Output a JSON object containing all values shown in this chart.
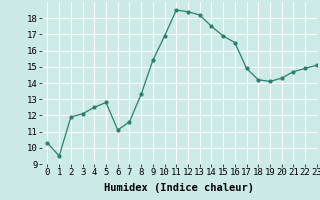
{
  "x": [
    0,
    1,
    2,
    3,
    4,
    5,
    6,
    7,
    8,
    9,
    10,
    11,
    12,
    13,
    14,
    15,
    16,
    17,
    18,
    19,
    20,
    21,
    22,
    23
  ],
  "y": [
    10.3,
    9.5,
    11.9,
    12.1,
    12.5,
    12.8,
    11.1,
    11.6,
    13.3,
    15.4,
    16.9,
    18.5,
    18.4,
    18.2,
    17.5,
    16.9,
    16.5,
    14.9,
    14.2,
    14.1,
    14.3,
    14.7,
    14.9,
    15.1
  ],
  "xlabel": "Humidex (Indice chaleur)",
  "ylim": [
    9,
    19
  ],
  "xlim": [
    -0.5,
    23
  ],
  "yticks": [
    9,
    10,
    11,
    12,
    13,
    14,
    15,
    16,
    17,
    18
  ],
  "xticks": [
    0,
    1,
    2,
    3,
    4,
    5,
    6,
    7,
    8,
    9,
    10,
    11,
    12,
    13,
    14,
    15,
    16,
    17,
    18,
    19,
    20,
    21,
    22,
    23
  ],
  "line_color": "#2a7f6f",
  "marker_color": "#2a7f6f",
  "bg_color": "#cceae7",
  "grid_color": "#ffffff",
  "xlabel_fontsize": 7.5,
  "tick_fontsize": 6.5
}
